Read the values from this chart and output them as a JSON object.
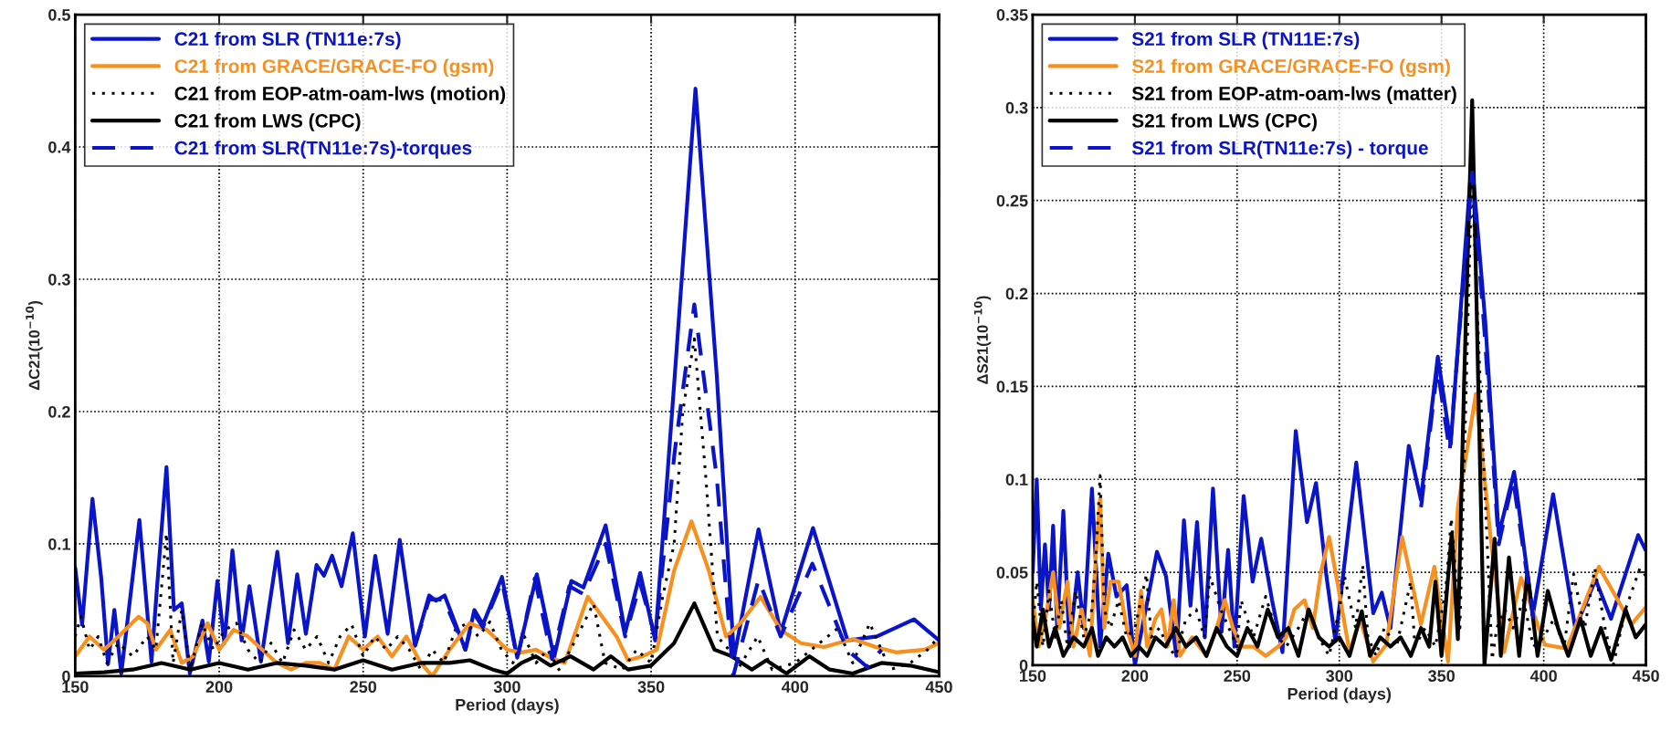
{
  "chart_data": [
    {
      "type": "line",
      "xlabel": "Period (days)",
      "ylabel": "ΔC21(10$^{−10}$)",
      "xlim": [
        150,
        450
      ],
      "ylim": [
        0,
        0.5
      ],
      "xticks": [
        150,
        200,
        250,
        300,
        350,
        400,
        450
      ],
      "yticks": [
        0,
        0.1,
        0.2,
        0.3,
        0.4,
        0.5
      ],
      "grid": true,
      "legend": "top left",
      "series": [
        {
          "name": "C21 from SLR (TN11e:7s)",
          "color": "#0a14c8",
          "line_style": "solid",
          "x": [
            150,
            152.4,
            156,
            159,
            161.4,
            163.6,
            166,
            172.3,
            176.5,
            178.3,
            181.7,
            184.3,
            187,
            189.8,
            194.2,
            196.4,
            199.4,
            201.8,
            204.6,
            207.8,
            210.5,
            214.5,
            220.2,
            223.9,
            227.1,
            230.1,
            233.8,
            236.4,
            239.2,
            242.5,
            246.4,
            250.6,
            254.2,
            258.5,
            262.7,
            268,
            272.9,
            275.3,
            278.3,
            285.5,
            288.6,
            291.6,
            298.2,
            303.5,
            310.3,
            316.3,
            322.3,
            326.5,
            334.2,
            341,
            346.2,
            351.4,
            358.2,
            365.4,
            372.8,
            378.8,
            387.3,
            395,
            406.2,
            418.2,
            428.4,
            441.3,
            450
          ],
          "values": [
            0.082,
            0.039,
            0.134,
            0.075,
            0.009,
            0.05,
            0.002,
            0.118,
            0.011,
            0.064,
            0.158,
            0.05,
            0.055,
            0.002,
            0.042,
            0.011,
            0.072,
            0.025,
            0.095,
            0.027,
            0.068,
            0.011,
            0.094,
            0.025,
            0.077,
            0.032,
            0.084,
            0.076,
            0.091,
            0.068,
            0.108,
            0.03,
            0.091,
            0.032,
            0.103,
            0.023,
            0.061,
            0.057,
            0.061,
            0.02,
            0.05,
            0.039,
            0.075,
            0.014,
            0.077,
            0.014,
            0.072,
            0.067,
            0.114,
            0.033,
            0.078,
            0.027,
            0.227,
            0.444,
            0.227,
            0.014,
            0.111,
            0.033,
            0.112,
            0.027,
            0.03,
            0.043,
            0.027
          ]
        },
        {
          "name": "C21 from GRACE/GRACE-FO (gsm)",
          "color": "#f7901e",
          "line_style": "solid",
          "x": [
            150,
            155,
            160,
            165,
            172,
            175,
            178,
            183,
            187,
            191,
            196,
            200,
            205,
            210,
            215,
            220,
            225,
            230,
            235,
            240,
            245,
            250,
            255,
            260,
            265,
            270,
            274,
            280,
            287,
            293,
            300,
            305,
            310,
            315,
            320,
            328,
            338,
            342,
            347,
            352,
            358,
            364,
            370,
            376,
            381,
            388,
            395,
            402,
            410,
            420,
            428,
            435,
            445,
            450
          ],
          "values": [
            0.015,
            0.03,
            0.02,
            0.03,
            0.045,
            0.04,
            0.02,
            0.035,
            0.01,
            0.015,
            0.04,
            0.02,
            0.035,
            0.03,
            0.02,
            0.01,
            0.005,
            0.01,
            0.01,
            0.005,
            0.03,
            0.02,
            0.03,
            0.015,
            0.03,
            0.01,
            0.0,
            0.02,
            0.04,
            0.035,
            0.02,
            0.018,
            0.02,
            0.014,
            0.01,
            0.06,
            0.03,
            0.012,
            0.015,
            0.02,
            0.08,
            0.117,
            0.08,
            0.03,
            0.04,
            0.06,
            0.035,
            0.025,
            0.022,
            0.028,
            0.022,
            0.018,
            0.02,
            0.025
          ]
        },
        {
          "name": "C21 from EOP-atm-oam-lws (motion)",
          "color": "#000000",
          "line_style": "dotted",
          "x": [
            150,
            152,
            155,
            158,
            161,
            165,
            170,
            175,
            178,
            181.7,
            184,
            187,
            190,
            194,
            198,
            202,
            206,
            210,
            214,
            218,
            222,
            226,
            230,
            234,
            238,
            242,
            246,
            250,
            254,
            258,
            262,
            266,
            270,
            274,
            278,
            282,
            286,
            290,
            294,
            298,
            302,
            306,
            310,
            314,
            318,
            322,
            330,
            334,
            340,
            345,
            350,
            354,
            358,
            361,
            365,
            369,
            373,
            377,
            380,
            387,
            392,
            400,
            414.7,
            420,
            425.9,
            433,
            440,
            446,
            450
          ],
          "values": [
            0.03,
            0.045,
            0.02,
            0.03,
            0.01,
            0.025,
            0.015,
            0.03,
            0.02,
            0.108,
            0.01,
            0.05,
            0.005,
            0.04,
            0.02,
            0.035,
            0.04,
            0.02,
            0.01,
            0.025,
            0.01,
            0.035,
            0.02,
            0.03,
            0.01,
            0.03,
            0.039,
            0.015,
            0.03,
            0.02,
            0.03,
            0.02,
            0.005,
            0.02,
            0.01,
            0.035,
            0.04,
            0.03,
            0.041,
            0.02,
            0.01,
            0.03,
            0.01,
            0.02,
            0.005,
            0.02,
            0.055,
            0.01,
            0.005,
            0.02,
            0.01,
            0.06,
            0.1,
            0.2,
            0.255,
            0.15,
            0.03,
            0.02,
            0.005,
            0.03,
            0.005,
            0.01,
            0.036,
            0.01,
            0.04,
            0.005,
            0.01,
            0.02,
            0.03
          ]
        },
        {
          "name": "C21 from LWS (CPC)",
          "color": "#000000",
          "line_style": "solid",
          "x": [
            150,
            160,
            170,
            180,
            190,
            200,
            210,
            220,
            230,
            240,
            250,
            260,
            270,
            280,
            287,
            295,
            300,
            305,
            310,
            315,
            322,
            330,
            336,
            342,
            350,
            358,
            365,
            372,
            378,
            385,
            390,
            397,
            405,
            412,
            420,
            430,
            440,
            450
          ],
          "values": [
            0.002,
            0.003,
            0.005,
            0.01,
            0.005,
            0.01,
            0.005,
            0.01,
            0.008,
            0.005,
            0.012,
            0.005,
            0.01,
            0.01,
            0.012,
            0.005,
            0.002,
            0.01,
            0.015,
            0.008,
            0.015,
            0.005,
            0.015,
            0.005,
            0.008,
            0.025,
            0.055,
            0.02,
            0.015,
            0.005,
            0.012,
            0.002,
            0.015,
            0.005,
            0.002,
            0.01,
            0.008,
            0.003
          ]
        },
        {
          "name": "C21 from SLR(TN11e:7s)-torques",
          "color": "#0a14c8",
          "line_style": "dashed",
          "x": [
            268,
            272.9,
            278,
            285.5,
            288.6,
            291.6,
            298.2,
            303.5,
            309.6,
            315.6,
            321.6,
            326.5,
            334.2,
            341,
            346.2,
            351.4,
            358.2,
            365,
            372.8,
            378.5,
            387.3,
            395,
            406,
            418,
            425,
            430
          ],
          "values": [
            0.023,
            0.058,
            0.058,
            0.02,
            0.047,
            0.037,
            0.072,
            0.013,
            0.074,
            0.013,
            0.068,
            0.062,
            0.1,
            0.03,
            0.07,
            0.03,
            0.17,
            0.281,
            0.15,
            0.0,
            0.073,
            0.03,
            0.085,
            0.02,
            0.007,
            0.02
          ]
        }
      ]
    },
    {
      "type": "line",
      "xlabel": "Period (days)",
      "ylabel": "ΔS21(10$^{−10}$)",
      "xlim": [
        150,
        450
      ],
      "ylim": [
        0,
        0.35
      ],
      "xticks": [
        150,
        200,
        250,
        300,
        350,
        400,
        450
      ],
      "yticks": [
        0,
        0.05,
        0.1,
        0.15,
        0.2,
        0.25,
        0.3,
        0.35
      ],
      "grid": true,
      "legend": "top left",
      "series": [
        {
          "name": "S21 from SLR (TN11E:7s)",
          "color": "#0a14c8",
          "line_style": "solid",
          "x": [
            150,
            152,
            154,
            156,
            158,
            160,
            162,
            165,
            168,
            172,
            175,
            179,
            183,
            187,
            191,
            196,
            200,
            210.8,
            215.2,
            220.3,
            224,
            227.2,
            230.4,
            234.2,
            238.2,
            242.4,
            245.6,
            248.7,
            253.2,
            257.6,
            261.8,
            267.1,
            272.2,
            278.7,
            284.2,
            288.6,
            293.7,
            298.1,
            308.3,
            316.6,
            320.8,
            325,
            334,
            339.9,
            348.2,
            354.5,
            364.8,
            371.4,
            378,
            385.5,
            394.7,
            404.6,
            415.4,
            425.4,
            432.9,
            446.2,
            449.8
          ],
          "values": [
            0.05,
            0.1,
            0.03,
            0.065,
            0.03,
            0.075,
            0.02,
            0.083,
            0.01,
            0.05,
            0.02,
            0.095,
            0.01,
            0.06,
            0.037,
            0.043,
            0.0,
            0.061,
            0.048,
            0.005,
            0.078,
            0.032,
            0.077,
            0.015,
            0.095,
            0.018,
            0.062,
            0.01,
            0.091,
            0.045,
            0.068,
            0.035,
            0.007,
            0.126,
            0.077,
            0.098,
            0.048,
            0.013,
            0.109,
            0.028,
            0.039,
            0.02,
            0.118,
            0.089,
            0.166,
            0.119,
            0.272,
            0.185,
            0.07,
            0.104,
            0.027,
            0.092,
            0.02,
            0.046,
            0.025,
            0.07,
            0.062
          ]
        },
        {
          "name": "S21 from GRACE/GRACE-FO (gsm)",
          "color": "#f7901e",
          "line_style": "solid",
          "x": [
            150,
            153,
            157,
            160,
            163,
            167,
            170,
            174,
            178,
            181,
            183,
            185,
            188,
            192,
            196,
            200,
            203,
            206,
            210,
            213,
            216,
            219,
            222,
            228,
            235,
            240,
            244,
            248,
            252,
            258,
            264,
            270,
            274,
            278,
            283,
            287,
            291,
            295,
            299,
            305,
            310,
            316.6,
            323,
            330.7,
            339.9,
            346.5,
            353.2,
            358,
            366.8,
            373.9,
            380.6,
            388.9,
            400.5,
            411.3,
            427,
            442.9,
            449.8
          ],
          "values": [
            0.035,
            0.01,
            0.03,
            0.05,
            0.02,
            0.045,
            0.01,
            0.03,
            0.005,
            0.06,
            0.09,
            0.02,
            0.045,
            0.045,
            0.02,
            0.005,
            0.04,
            0.01,
            0.025,
            0.03,
            0.01,
            0.035,
            0.005,
            0.015,
            0.005,
            0.02,
            0.035,
            0.02,
            0.01,
            0.01,
            0.005,
            0.01,
            0.015,
            0.03,
            0.035,
            0.02,
            0.05,
            0.069,
            0.045,
            0.007,
            0.025,
            0.002,
            0.011,
            0.069,
            0.022,
            0.053,
            0.002,
            0.085,
            0.146,
            0.07,
            0.007,
            0.047,
            0.011,
            0.009,
            0.053,
            0.022,
            0.031
          ]
        },
        {
          "name": "S21 from EOP-atm-oam-lws (matter)",
          "color": "#000000",
          "line_style": "dotted",
          "x": [
            150,
            152,
            155,
            158,
            161,
            164,
            167,
            171,
            175,
            179,
            181,
            183,
            185,
            188,
            192,
            196,
            200,
            205.7,
            208,
            212,
            216,
            220,
            225,
            230,
            234,
            236.7,
            242,
            246,
            250,
            251.9,
            258,
            264,
            270,
            274,
            280,
            285,
            290,
            295,
            300,
            302.5,
            308,
            311.4,
            314,
            318,
            322,
            328,
            334.9,
            337,
            342,
            347,
            352,
            354.8,
            359,
            364.8,
            369,
            374.8,
            377,
            381,
            385,
            390,
            395,
            400,
            405,
            410,
            414.6,
            420,
            425,
            430,
            434,
            440,
            447,
            450
          ],
          "values": [
            0.02,
            0.045,
            0.01,
            0.04,
            0.015,
            0.035,
            0.01,
            0.04,
            0.015,
            0.03,
            0.06,
            0.102,
            0.03,
            0.02,
            0.035,
            0.015,
            0.02,
            0.049,
            0.015,
            0.02,
            0.01,
            0.005,
            0.025,
            0.03,
            0.015,
            0.048,
            0.03,
            0.02,
            0.01,
            0.035,
            0.015,
            0.037,
            0.015,
            0.01,
            0.02,
            0.03,
            0.015,
            0.005,
            0.03,
            0.048,
            0.02,
            0.054,
            0.015,
            0.005,
            0.02,
            0.01,
            0.045,
            0.01,
            0.02,
            0.01,
            0.04,
            0.079,
            0.02,
            0.265,
            0.15,
            0.003,
            0.02,
            0.03,
            0.02,
            0.035,
            0.01,
            0.015,
            0.025,
            0.01,
            0.049,
            0.02,
            0.052,
            0.02,
            0.0,
            0.03,
            0.052,
            0.048
          ]
        },
        {
          "name": "S21 from LWS (CPC)",
          "color": "#000000",
          "line_style": "solid",
          "x": [
            150,
            152,
            155,
            158,
            161,
            165,
            170,
            175,
            179,
            182,
            186,
            190,
            194,
            198,
            202,
            206,
            210,
            215,
            220,
            225,
            230,
            235,
            240,
            245,
            250,
            255,
            260,
            265,
            270,
            275,
            280,
            285,
            290,
            295,
            300,
            305,
            311,
            315,
            320,
            325,
            330,
            335,
            340,
            344,
            347,
            350,
            355,
            358,
            361,
            365,
            368,
            371,
            376,
            379,
            383,
            388,
            392,
            397,
            402,
            407,
            412,
            418,
            423,
            428,
            433,
            440,
            445,
            450
          ],
          "values": [
            0.025,
            0.01,
            0.03,
            0.01,
            0.02,
            0.005,
            0.015,
            0.01,
            0.02,
            0.005,
            0.015,
            0.01,
            0.015,
            0.005,
            0.01,
            0.005,
            0.015,
            0.01,
            0.02,
            0.01,
            0.015,
            0.005,
            0.02,
            0.01,
            0.005,
            0.02,
            0.01,
            0.03,
            0.015,
            0.02,
            0.005,
            0.03,
            0.015,
            0.01,
            0.015,
            0.005,
            0.029,
            0.005,
            0.015,
            0.01,
            0.015,
            0.005,
            0.02,
            0.01,
            0.045,
            0.005,
            0.071,
            0.014,
            0.15,
            0.304,
            0.15,
            0.0,
            0.068,
            0.005,
            0.058,
            0.005,
            0.05,
            0.005,
            0.04,
            0.02,
            0.005,
            0.025,
            0.005,
            0.02,
            0.003,
            0.03,
            0.015,
            0.022
          ]
        },
        {
          "name": "S21 from SLR(TN11e:7s) - torque",
          "color": "#0a14c8",
          "line_style": "dashed",
          "x": [
            340,
            348,
            354,
            365,
            371,
            378,
            385,
            395
          ],
          "values": [
            0.085,
            0.16,
            0.115,
            0.265,
            0.18,
            0.065,
            0.1,
            0.025
          ]
        }
      ]
    }
  ]
}
